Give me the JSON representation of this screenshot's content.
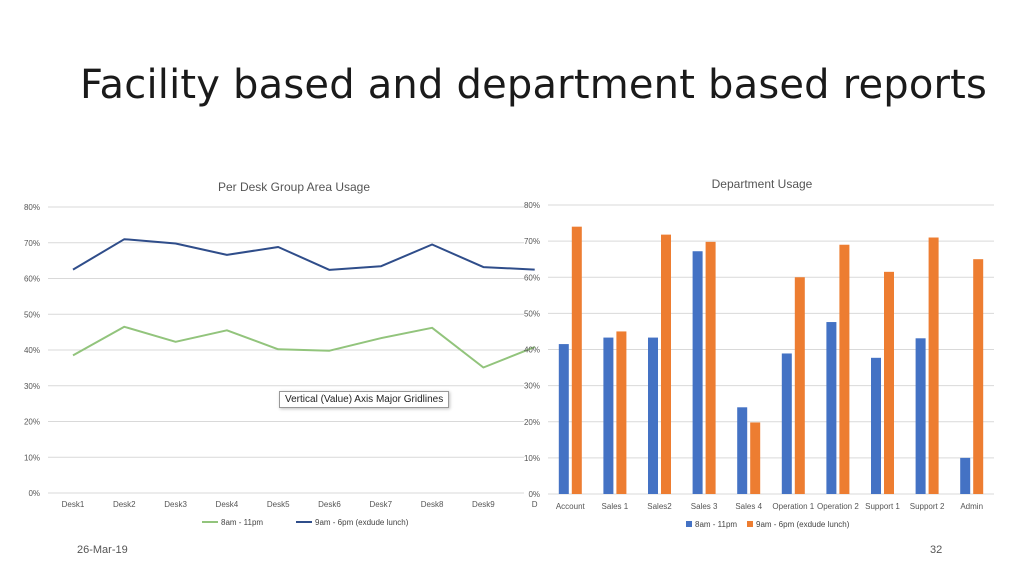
{
  "slide": {
    "title": "Facility based and department based reports",
    "date": "26-Mar-19",
    "page_number": "32"
  },
  "tooltip": "Vertical (Value) Axis Major Gridlines",
  "chart_data": [
    {
      "type": "line",
      "title": "Per Desk Group Area Usage",
      "categories": [
        "Desk1",
        "Desk2",
        "Desk3",
        "Desk4",
        "Desk5",
        "Desk6",
        "Desk7",
        "Desk8",
        "Desk9",
        "D"
      ],
      "ylim": [
        0,
        80
      ],
      "yticks": [
        "0%",
        "10%",
        "20%",
        "30%",
        "40%",
        "50%",
        "60%",
        "70%",
        "80%"
      ],
      "grid": true,
      "legend": "bottom",
      "series": [
        {
          "name": "8am - 11pm",
          "color": "#92c47c",
          "values": [
            38.5,
            46.5,
            42.3,
            45.5,
            40.2,
            39.8,
            43.3,
            46.2,
            35.1,
            40.8
          ]
        },
        {
          "name": "9am - 6pm (exdude lunch)",
          "color": "#2f4d8a",
          "values": [
            62.5,
            71,
            69.8,
            66.6,
            68.8,
            62.4,
            63.4,
            69.5,
            63.2,
            62.5
          ]
        }
      ]
    },
    {
      "type": "bar",
      "title": "Department Usage",
      "categories": [
        "Account",
        "Sales 1",
        "Sales2",
        "Sales 3",
        "Sales 4",
        "Operation 1",
        "Operation 2",
        "Support 1",
        "Support 2",
        "Admin"
      ],
      "ylim": [
        0,
        80
      ],
      "yticks": [
        "0%",
        "10%",
        "20%",
        "30%",
        "40%",
        "50%",
        "60%",
        "70%",
        "80%"
      ],
      "grid": true,
      "legend": "bottom",
      "series": [
        {
          "name": "8am - 11pm",
          "color": "#4472c4",
          "values": [
            41.5,
            43.3,
            43.3,
            67.2,
            24,
            38.9,
            47.6,
            37.7,
            43.1,
            10
          ]
        },
        {
          "name": "9am - 6pm (exdude lunch)",
          "color": "#ed7d31",
          "values": [
            74,
            45,
            71.8,
            69.8,
            19.8,
            60,
            69,
            61.5,
            71,
            65
          ]
        }
      ]
    }
  ]
}
